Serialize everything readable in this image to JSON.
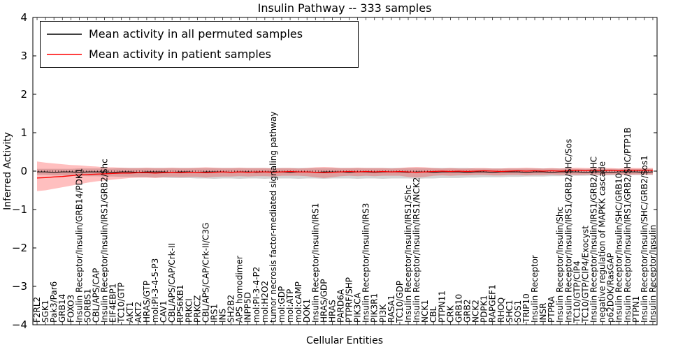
{
  "chart_data": {
    "type": "line",
    "title": "Insulin Pathway -- 333 samples",
    "xlabel": "Cellular Entities",
    "ylabel": "Inferred Activity",
    "ylim": [
      -4,
      4
    ],
    "y_ticks": [
      -4,
      -3,
      -2,
      -1,
      0,
      1,
      2,
      3,
      4
    ],
    "y_tick_labels": [
      "−4",
      "−3",
      "−2",
      "−1",
      "0",
      "1",
      "2",
      "3",
      "4"
    ],
    "zero_line": {
      "value": 0,
      "style": "dotted",
      "color": "#000000"
    },
    "legend_position": "upper left",
    "categories": [
      "F2RL2",
      "SGK1",
      "Pak3/Par6",
      "GRB14",
      "FOXO3",
      "Insulin Receptor/Insulin/GRB14/PDK1",
      "SORBS1",
      "CBL/APS/CAP",
      "Insulin Receptor/Insulin/IRS1/GRB2/Shc",
      "EIF4EBP1",
      "TC10/GTP",
      "AKT1",
      "AKT2",
      "HRAS/GTP",
      "mol:PI-3-4-5-P3",
      "CAV1",
      "CBL/APS/CAP/Crk-II",
      "RPS6KB1",
      "PRKCI",
      "PRKCZ",
      "CBL/APS/CAP/Crk-II/C3G",
      "IRS1",
      "INS",
      "SH2B2",
      "APS homodimer",
      "INPP5D",
      "mol:PI-3-4-P2",
      "mol:H2O2",
      "tumor necrosis factor-mediated signaling pathway",
      "mol:GDP",
      "mol:ATP",
      "mol:cAMP",
      "DOK1",
      "Insulin Receptor/Insulin/IRS1",
      "HRAS/GDP",
      "HRAS",
      "PARD6A",
      "PTPRF/SHP",
      "PIK3CA",
      "Insulin Receptor/Insulin/IRS3",
      "PIK3R1",
      "PI3K",
      "RASA1",
      "TC10/GDP",
      "Insulin Receptor/Insulin/IRS1/Shc",
      "Insulin Receptor/Insulin/IRS1/NCK2",
      "NCK1",
      "CBL",
      "PTPN11",
      "CRK",
      "GRB10",
      "GRB2",
      "NCK2",
      "PDPK1",
      "RAPGEF1",
      "RHOQ",
      "SHC1",
      "SOS1",
      "TRIP10",
      "Insulin Receptor",
      "INSR",
      "PTPRA",
      "Insulin Receptor/Insulin/Shc",
      "Insulin Receptor/Insulin/IRS1/GRB2/SHC/Sos",
      "TC10/GTP/CIP4",
      "TC10/GTP/CIP4/Exocyst",
      "Insulin Receptor/Insulin/IRS1/GRB2/SHC",
      "negative regulation of MAPKK cascade",
      "p62DOK/RasGAP",
      "Insulin Receptor/Insulin/SHC/GRB10",
      "Insulin Receptor/Insulin/IRS1/GRB2/SHC/PTP1B",
      "PTPN1",
      "Insulin Receptor/Insulin/SHC/GRB2/Sos1",
      "Insulin Receptor/Insulin"
    ],
    "series": [
      {
        "name": "Mean activity in all permuted samples",
        "color": "#000000",
        "band_color": "rgba(128,128,128,0.35)",
        "values": [
          -0.02,
          -0.02,
          -0.03,
          -0.02,
          -0.02,
          -0.03,
          -0.02,
          -0.02,
          -0.02,
          -0.03,
          -0.02,
          -0.02,
          -0.03,
          -0.02,
          -0.02,
          -0.02,
          -0.03,
          -0.02,
          -0.02,
          -0.03,
          -0.02,
          -0.02,
          -0.02,
          -0.03,
          -0.02,
          -0.02,
          -0.03,
          -0.02,
          -0.02,
          -0.02,
          -0.03,
          -0.02,
          -0.02,
          -0.03,
          -0.02,
          -0.02,
          -0.02,
          -0.03,
          -0.02,
          -0.02,
          -0.03,
          -0.02,
          -0.02,
          -0.02,
          -0.03,
          -0.02,
          -0.02,
          -0.03,
          -0.02,
          -0.02,
          -0.02,
          -0.03,
          -0.02,
          -0.02,
          -0.03,
          -0.02,
          -0.02,
          -0.02,
          -0.03,
          -0.02,
          -0.02,
          -0.03,
          -0.02,
          -0.02,
          -0.02,
          -0.03,
          -0.02,
          -0.02,
          -0.03,
          -0.02,
          -0.02,
          -0.02,
          -0.03,
          -0.02
        ],
        "band_upper": [
          0.06,
          0.06,
          0.06,
          0.06,
          0.06,
          0.07,
          0.07,
          0.07,
          0.07,
          0.07,
          0.08,
          0.08,
          0.08,
          0.08,
          0.08,
          0.08,
          0.08,
          0.08,
          0.08,
          0.08,
          0.08,
          0.08,
          0.08,
          0.08,
          0.08,
          0.08,
          0.08,
          0.08,
          0.08,
          0.08,
          0.08,
          0.08,
          0.08,
          0.08,
          0.08,
          0.08,
          0.08,
          0.08,
          0.08,
          0.08,
          0.08,
          0.08,
          0.08,
          0.08,
          0.08,
          0.08,
          0.08,
          0.08,
          0.08,
          0.08,
          0.08,
          0.08,
          0.07,
          0.07,
          0.07,
          0.07,
          0.07,
          0.07,
          0.07,
          0.07,
          0.07,
          0.07,
          0.07,
          0.07,
          0.06,
          0.06,
          0.06,
          0.06,
          0.06,
          0.06,
          0.06,
          0.06,
          0.06,
          0.06
        ],
        "band_lower": [
          -0.1,
          -0.1,
          -0.11,
          -0.11,
          -0.12,
          -0.12,
          -0.13,
          -0.13,
          -0.14,
          -0.14,
          -0.15,
          -0.15,
          -0.16,
          -0.16,
          -0.17,
          -0.17,
          -0.18,
          -0.18,
          -0.18,
          -0.19,
          -0.19,
          -0.2,
          -0.19,
          -0.19,
          -0.2,
          -0.19,
          -0.19,
          -0.2,
          -0.19,
          -0.19,
          -0.19,
          -0.2,
          -0.19,
          -0.19,
          -0.2,
          -0.19,
          -0.19,
          -0.19,
          -0.2,
          -0.19,
          -0.19,
          -0.2,
          -0.19,
          -0.19,
          -0.19,
          -0.2,
          -0.19,
          -0.19,
          -0.18,
          -0.18,
          -0.18,
          -0.17,
          -0.17,
          -0.16,
          -0.16,
          -0.16,
          -0.15,
          -0.15,
          -0.14,
          -0.14,
          -0.14,
          -0.13,
          -0.13,
          -0.12,
          -0.12,
          -0.12,
          -0.11,
          -0.11,
          -0.11,
          -0.1,
          -0.1,
          -0.1,
          -0.1,
          -0.1
        ]
      },
      {
        "name": "Mean activity in patient samples",
        "color": "#ff0000",
        "band_color": "rgba(255,0,0,0.25)",
        "values": [
          -0.18,
          -0.17,
          -0.15,
          -0.14,
          -0.12,
          -0.1,
          -0.09,
          -0.08,
          -0.07,
          -0.06,
          -0.05,
          -0.05,
          -0.04,
          -0.04,
          -0.05,
          -0.04,
          -0.03,
          -0.04,
          -0.03,
          -0.03,
          -0.04,
          -0.03,
          -0.02,
          -0.03,
          -0.02,
          -0.03,
          -0.02,
          -0.02,
          -0.03,
          -0.02,
          -0.01,
          -0.02,
          -0.02,
          -0.03,
          -0.04,
          -0.03,
          -0.02,
          -0.01,
          -0.02,
          -0.01,
          -0.02,
          -0.01,
          -0.02,
          -0.01,
          -0.02,
          -0.03,
          -0.02,
          -0.01,
          0.0,
          -0.01,
          0.0,
          -0.01,
          0.0,
          0.01,
          0.0,
          -0.01,
          0.0,
          0.01,
          0.0,
          0.01,
          0.0,
          0.01,
          0.0,
          0.01,
          0.02,
          0.01,
          0.02,
          0.01,
          0.02,
          0.01,
          0.02,
          0.02,
          0.02,
          0.02
        ],
        "band_upper": [
          0.25,
          0.22,
          0.2,
          0.18,
          0.16,
          0.15,
          0.13,
          0.12,
          0.1,
          0.1,
          0.09,
          0.08,
          0.08,
          0.09,
          0.08,
          0.08,
          0.09,
          0.08,
          0.08,
          0.09,
          0.1,
          0.09,
          0.08,
          0.08,
          0.09,
          0.08,
          0.08,
          0.08,
          0.07,
          0.08,
          0.08,
          0.07,
          0.08,
          0.1,
          0.11,
          0.1,
          0.08,
          0.08,
          0.09,
          0.08,
          0.08,
          0.08,
          0.07,
          0.08,
          0.1,
          0.11,
          0.1,
          0.08,
          0.07,
          0.08,
          0.07,
          0.07,
          0.08,
          0.08,
          0.07,
          0.07,
          0.08,
          0.08,
          0.09,
          0.08,
          0.07,
          0.08,
          0.07,
          0.08,
          0.09,
          0.08,
          0.08,
          0.08,
          0.08,
          0.07,
          0.09,
          0.08,
          0.08,
          0.08
        ],
        "band_lower": [
          -0.52,
          -0.5,
          -0.46,
          -0.42,
          -0.38,
          -0.34,
          -0.3,
          -0.27,
          -0.24,
          -0.22,
          -0.2,
          -0.18,
          -0.17,
          -0.17,
          -0.18,
          -0.16,
          -0.15,
          -0.16,
          -0.15,
          -0.15,
          -0.17,
          -0.15,
          -0.14,
          -0.14,
          -0.13,
          -0.14,
          -0.13,
          -0.13,
          -0.14,
          -0.12,
          -0.12,
          -0.12,
          -0.13,
          -0.16,
          -0.18,
          -0.16,
          -0.13,
          -0.12,
          -0.13,
          -0.12,
          -0.13,
          -0.12,
          -0.12,
          -0.12,
          -0.15,
          -0.17,
          -0.15,
          -0.12,
          -0.11,
          -0.12,
          -0.11,
          -0.11,
          -0.1,
          -0.1,
          -0.11,
          -0.11,
          -0.1,
          -0.1,
          -0.11,
          -0.1,
          -0.1,
          -0.09,
          -0.1,
          -0.09,
          -0.1,
          -0.09,
          -0.09,
          -0.1,
          -0.09,
          -0.09,
          -0.1,
          -0.09,
          -0.09,
          -0.09
        ]
      }
    ]
  }
}
